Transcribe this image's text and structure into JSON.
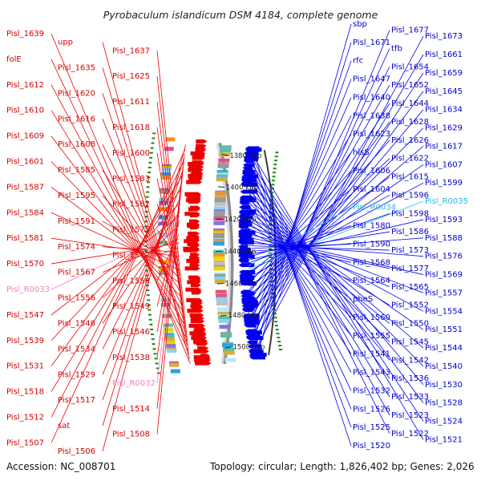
{
  "title": "Pyrobaculum islandicum DSM 4184, complete genome",
  "accession": "Accession: NC_008701",
  "summary": "Topology: circular; Length: 1,826,402 bp; Genes: 2,026",
  "colors": {
    "forward": "#ee0000",
    "reverse": "#0000ee",
    "rna_pink": "#f080c0",
    "rna_cyan": "#22b8ee",
    "backbone": "#8c8c8c",
    "tick_green": "#1a8a1a"
  },
  "ticks": [
    "1380 kbp",
    "1400 kbp",
    "1420 kbp",
    "1440 kbp",
    "1460 kbp",
    "1480 kbp",
    "1500 kbp"
  ],
  "labels_left": [
    {
      "text": "Pisl_1639",
      "c": "red"
    },
    {
      "text": "upp",
      "c": "red"
    },
    {
      "text": "Pisl_1637",
      "c": "red"
    },
    {
      "text": "folE",
      "c": "red"
    },
    {
      "text": "Pisl_1635",
      "c": "red"
    },
    {
      "text": "Pisl_1625",
      "c": "red"
    },
    {
      "text": "Pisl_1612",
      "c": "red"
    },
    {
      "text": "Pisl_1620",
      "c": "red"
    },
    {
      "text": "Pisl_1611",
      "c": "red"
    },
    {
      "text": "Pisl_1610",
      "c": "red"
    },
    {
      "text": "Pisl_1616",
      "c": "red"
    },
    {
      "text": "Pisl_1618",
      "c": "red"
    },
    {
      "text": "Pisl_1609",
      "c": "red"
    },
    {
      "text": "Pisl_1608",
      "c": "red"
    },
    {
      "text": "Pisl_1600",
      "c": "red"
    },
    {
      "text": "Pisl_1601",
      "c": "red"
    },
    {
      "text": "Pisl_1585",
      "c": "red"
    },
    {
      "text": "Pisl_1583",
      "c": "red"
    },
    {
      "text": "Pisl_1587",
      "c": "red"
    },
    {
      "text": "Pisl_1595",
      "c": "red"
    },
    {
      "text": "Pisl_1582",
      "c": "red"
    },
    {
      "text": "Pisl_1584",
      "c": "red"
    },
    {
      "text": "Pisl_1591",
      "c": "red"
    },
    {
      "text": "Pisl_1575",
      "c": "red"
    },
    {
      "text": "Pisl_1581",
      "c": "red"
    },
    {
      "text": "Pisl_1574",
      "c": "red"
    },
    {
      "text": "Pisl_1572",
      "c": "red"
    },
    {
      "text": "Pisl_1570",
      "c": "red"
    },
    {
      "text": "Pisl_1567",
      "c": "red"
    },
    {
      "text": "Pisl_1558",
      "c": "red"
    },
    {
      "text": "Pisl_R0033",
      "c": "pink"
    },
    {
      "text": "Pisl_1556",
      "c": "red"
    },
    {
      "text": "Pisl_1549",
      "c": "red"
    },
    {
      "text": "Pisl_1547",
      "c": "red"
    },
    {
      "text": "Pisl_1548",
      "c": "red"
    },
    {
      "text": "Pisl_1546",
      "c": "red"
    },
    {
      "text": "Pisl_1539",
      "c": "red"
    },
    {
      "text": "Pisl_1534",
      "c": "red"
    },
    {
      "text": "Pisl_1538",
      "c": "red"
    },
    {
      "text": "Pisl_1531",
      "c": "red"
    },
    {
      "text": "Pisl_1529",
      "c": "red"
    },
    {
      "text": "Pisl_R0032",
      "c": "pink"
    },
    {
      "text": "Pisl_1518",
      "c": "red"
    },
    {
      "text": "Pisl_1517",
      "c": "red"
    },
    {
      "text": "Pisl_1514",
      "c": "red"
    },
    {
      "text": "Pisl_1512",
      "c": "red"
    },
    {
      "text": "sat",
      "c": "red"
    },
    {
      "text": "Pisl_1508",
      "c": "red"
    },
    {
      "text": "Pisl_1507",
      "c": "red"
    },
    {
      "text": "Pisl_1506",
      "c": "red"
    }
  ],
  "labels_right": [
    {
      "text": "sbp",
      "c": "blue"
    },
    {
      "text": "Pisl_1677",
      "c": "blue"
    },
    {
      "text": "Pisl_1673",
      "c": "blue"
    },
    {
      "text": "Pisl_1671",
      "c": "blue"
    },
    {
      "text": "tfb",
      "c": "blue"
    },
    {
      "text": "Pisl_1661",
      "c": "blue"
    },
    {
      "text": "rfc",
      "c": "blue"
    },
    {
      "text": "Pisl_1654",
      "c": "blue"
    },
    {
      "text": "Pisl_1659",
      "c": "blue"
    },
    {
      "text": "Pisl_1647",
      "c": "blue"
    },
    {
      "text": "Pisl_1652",
      "c": "blue"
    },
    {
      "text": "Pisl_1645",
      "c": "blue"
    },
    {
      "text": "Pisl_1640",
      "c": "blue"
    },
    {
      "text": "Pisl_1644",
      "c": "blue"
    },
    {
      "text": "Pisl_1634",
      "c": "blue"
    },
    {
      "text": "Pisl_1638",
      "c": "blue"
    },
    {
      "text": "Pisl_1628",
      "c": "blue"
    },
    {
      "text": "Pisl_1629",
      "c": "blue"
    },
    {
      "text": "Pisl_1623",
      "c": "blue"
    },
    {
      "text": "Pisl_1626",
      "c": "blue"
    },
    {
      "text": "Pisl_1617",
      "c": "blue"
    },
    {
      "text": "hisS",
      "c": "blue"
    },
    {
      "text": "Pisl_1622",
      "c": "blue"
    },
    {
      "text": "Pisl_1607",
      "c": "blue"
    },
    {
      "text": "Pisl_1606",
      "c": "blue"
    },
    {
      "text": "Pisl_1615",
      "c": "blue"
    },
    {
      "text": "Pisl_1599",
      "c": "blue"
    },
    {
      "text": "Pisl_1604",
      "c": "blue"
    },
    {
      "text": "Pisl_1596",
      "c": "blue"
    },
    {
      "text": "Pisl_R0035",
      "c": "cyan"
    },
    {
      "text": "Pisl_R0034",
      "c": "cyan"
    },
    {
      "text": "Pisl_1598",
      "c": "blue"
    },
    {
      "text": "Pisl_1593",
      "c": "blue"
    },
    {
      "text": "Pisl_1580",
      "c": "blue"
    },
    {
      "text": "Pisl_1586",
      "c": "blue"
    },
    {
      "text": "Pisl_1588",
      "c": "blue"
    },
    {
      "text": "Pisl_1590",
      "c": "blue"
    },
    {
      "text": "Pisl_1573",
      "c": "blue"
    },
    {
      "text": "Pisl_1576",
      "c": "blue"
    },
    {
      "text": "Pisl_1568",
      "c": "blue"
    },
    {
      "text": "Pisl_1577",
      "c": "blue"
    },
    {
      "text": "Pisl_1569",
      "c": "blue"
    },
    {
      "text": "Pisl_1564",
      "c": "blue"
    },
    {
      "text": "Pisl_1565",
      "c": "blue"
    },
    {
      "text": "Pisl_1557",
      "c": "blue"
    },
    {
      "text": "pheS",
      "c": "blue"
    },
    {
      "text": "Pisl_1552",
      "c": "blue"
    },
    {
      "text": "Pisl_1554",
      "c": "blue"
    },
    {
      "text": "Pisl_1560",
      "c": "blue"
    },
    {
      "text": "Pisl_1550",
      "c": "blue"
    },
    {
      "text": "Pisl_1551",
      "c": "blue"
    },
    {
      "text": "Pisl_1555",
      "c": "blue"
    },
    {
      "text": "Pisl_1545",
      "c": "blue"
    },
    {
      "text": "Pisl_1544",
      "c": "blue"
    },
    {
      "text": "Pisl_1541",
      "c": "blue"
    },
    {
      "text": "Pisl_1542",
      "c": "blue"
    },
    {
      "text": "Pisl_1540",
      "c": "blue"
    },
    {
      "text": "Pisl_1543",
      "c": "blue"
    },
    {
      "text": "Pisl_1536",
      "c": "blue"
    },
    {
      "text": "Pisl_1530",
      "c": "blue"
    },
    {
      "text": "Pisl_1532",
      "c": "blue"
    },
    {
      "text": "Pisl_1533",
      "c": "blue"
    },
    {
      "text": "Pisl_1528",
      "c": "blue"
    },
    {
      "text": "Pisl_1526",
      "c": "blue"
    },
    {
      "text": "Pisl_1523",
      "c": "blue"
    },
    {
      "text": "Pisl_1524",
      "c": "blue"
    },
    {
      "text": "Pisl_1525",
      "c": "blue"
    },
    {
      "text": "Pisl_1522",
      "c": "blue"
    },
    {
      "text": "Pisl_1521",
      "c": "blue"
    },
    {
      "text": "Pisl_1520",
      "c": "blue"
    }
  ]
}
